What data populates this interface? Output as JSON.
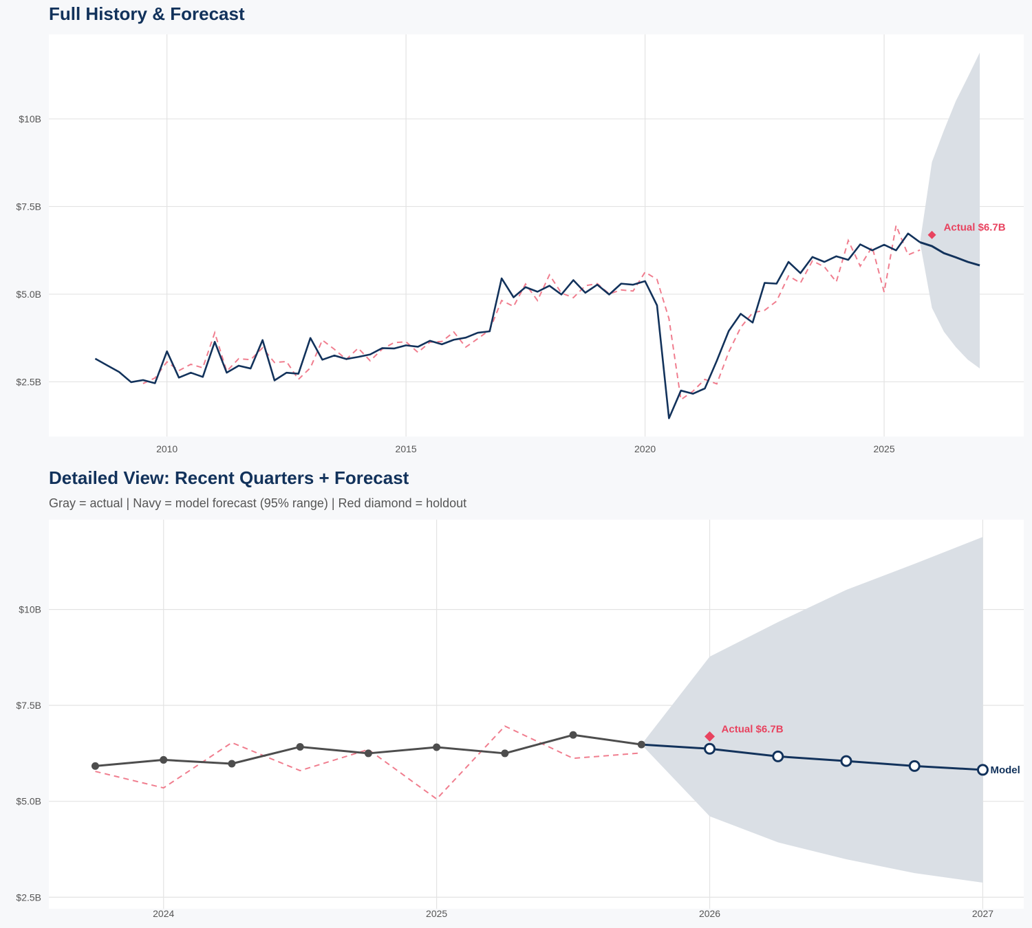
{
  "colors": {
    "navy": "#12325b",
    "red": "#e8435f",
    "red_dashed": "#f07d8e",
    "gray": "#4d4d4d",
    "band": "#dadfe5",
    "grid": "#e3e3e3"
  },
  "chart_data": [
    {
      "type": "line",
      "title": "Full History & Forecast",
      "xlim": [
        2007.53,
        2027.92
      ],
      "ylim": [
        0.94,
        12.41
      ],
      "x_ticks": [
        2010,
        2015,
        2020,
        2025
      ],
      "x_tick_labels": [
        "2010",
        "2015",
        "2020",
        "2025"
      ],
      "y_ticks": [
        2.5,
        5,
        7.5,
        10
      ],
      "y_tick_labels": [
        "$2.5B",
        "$5.0B",
        "$7.5B",
        "$10B"
      ],
      "grid": true,
      "actual": {
        "x_start": 2008.5,
        "step": 0.25,
        "values": [
          3.16,
          2.97,
          2.78,
          2.49,
          2.55,
          2.46,
          3.37,
          2.62,
          2.76,
          2.64,
          3.64,
          2.76,
          2.96,
          2.88,
          3.69,
          2.54,
          2.76,
          2.73,
          3.75,
          3.13,
          3.25,
          3.15,
          3.21,
          3.28,
          3.46,
          3.45,
          3.54,
          3.5,
          3.67,
          3.57,
          3.7,
          3.76,
          3.9,
          3.94,
          5.45,
          4.91,
          5.2,
          5.07,
          5.24,
          4.99,
          5.4,
          5.04,
          5.27,
          4.99,
          5.3,
          5.27,
          5.37,
          4.68,
          1.46,
          2.25,
          2.16,
          2.31,
          3.1,
          3.95,
          4.44,
          4.19,
          5.32,
          5.3,
          5.92,
          5.6,
          6.06,
          5.92,
          6.08,
          5.98,
          6.42,
          6.25,
          6.41,
          6.25,
          6.73,
          6.48
        ]
      },
      "fitted": {
        "x_start": 2009.5,
        "step": 0.25,
        "values": [
          2.45,
          2.61,
          3.07,
          2.82,
          3.0,
          2.9,
          3.9,
          2.8,
          3.16,
          3.13,
          3.47,
          3.05,
          3.08,
          2.57,
          2.9,
          3.69,
          3.43,
          3.14,
          3.46,
          3.1,
          3.43,
          3.62,
          3.64,
          3.34,
          3.63,
          3.65,
          3.92,
          3.49,
          3.73,
          3.98,
          4.82,
          4.65,
          5.29,
          4.82,
          5.55,
          5.03,
          4.9,
          5.24,
          5.3,
          5.01,
          5.12,
          5.09,
          5.63,
          5.42,
          4.3,
          1.99,
          2.23,
          2.57,
          2.44,
          3.35,
          4.05,
          4.47,
          4.54,
          4.8,
          5.52,
          5.32,
          5.95,
          5.78,
          5.35,
          6.53,
          5.8,
          6.35,
          5.06,
          6.96,
          6.12,
          6.26
        ]
      },
      "forecast": {
        "x": [
          2025.75,
          2026.0,
          2026.25,
          2026.5,
          2026.75,
          2027.0
        ],
        "values": [
          6.48,
          6.37,
          6.17,
          6.05,
          5.92,
          5.82
        ],
        "upper": [
          6.48,
          8.77,
          9.67,
          10.51,
          11.19,
          11.89
        ],
        "lower": [
          6.48,
          4.61,
          3.93,
          3.49,
          3.13,
          2.88
        ]
      },
      "holdout": {
        "x": 2026.0,
        "value": 6.69,
        "label": "Actual $6.7B"
      }
    },
    {
      "type": "line",
      "title": "Detailed View: Recent Quarters + Forecast",
      "subtitle": "Gray = actual  |  Navy = model forecast (95% range)  |  Red diamond = holdout",
      "xlim": [
        2023.58,
        2027.15
      ],
      "ylim": [
        2.2,
        12.34
      ],
      "x_ticks": [
        2024,
        2025,
        2026,
        2027
      ],
      "x_tick_labels": [
        "2024",
        "2025",
        "2026",
        "2027"
      ],
      "y_ticks": [
        2.5,
        5,
        7.5,
        10
      ],
      "y_tick_labels": [
        "$2.5B",
        "$5.0B",
        "$7.5B",
        "$10B"
      ],
      "grid": true,
      "actual": {
        "x": [
          2023.75,
          2024.0,
          2024.25,
          2024.5,
          2024.75,
          2025.0,
          2025.25,
          2025.5,
          2025.75
        ],
        "values": [
          5.92,
          6.08,
          5.98,
          6.42,
          6.25,
          6.41,
          6.25,
          6.73,
          6.48
        ]
      },
      "fitted": {
        "x": [
          2023.75,
          2024.0,
          2024.25,
          2024.5,
          2024.75,
          2025.0,
          2025.25,
          2025.5,
          2025.75
        ],
        "values": [
          5.78,
          5.35,
          6.53,
          5.8,
          6.35,
          5.06,
          6.96,
          6.12,
          6.26
        ]
      },
      "forecast": {
        "x": [
          2025.75,
          2026.0,
          2026.25,
          2026.5,
          2026.75,
          2027.0
        ],
        "values": [
          6.48,
          6.37,
          6.17,
          6.05,
          5.92,
          5.82
        ],
        "upper": [
          6.48,
          8.77,
          9.67,
          10.51,
          11.19,
          11.89
        ],
        "lower": [
          6.48,
          4.61,
          3.93,
          3.49,
          3.13,
          2.88
        ],
        "end_label": "Model"
      },
      "holdout": {
        "x": 2026.0,
        "value": 6.69,
        "label": "Actual $6.7B"
      }
    }
  ]
}
